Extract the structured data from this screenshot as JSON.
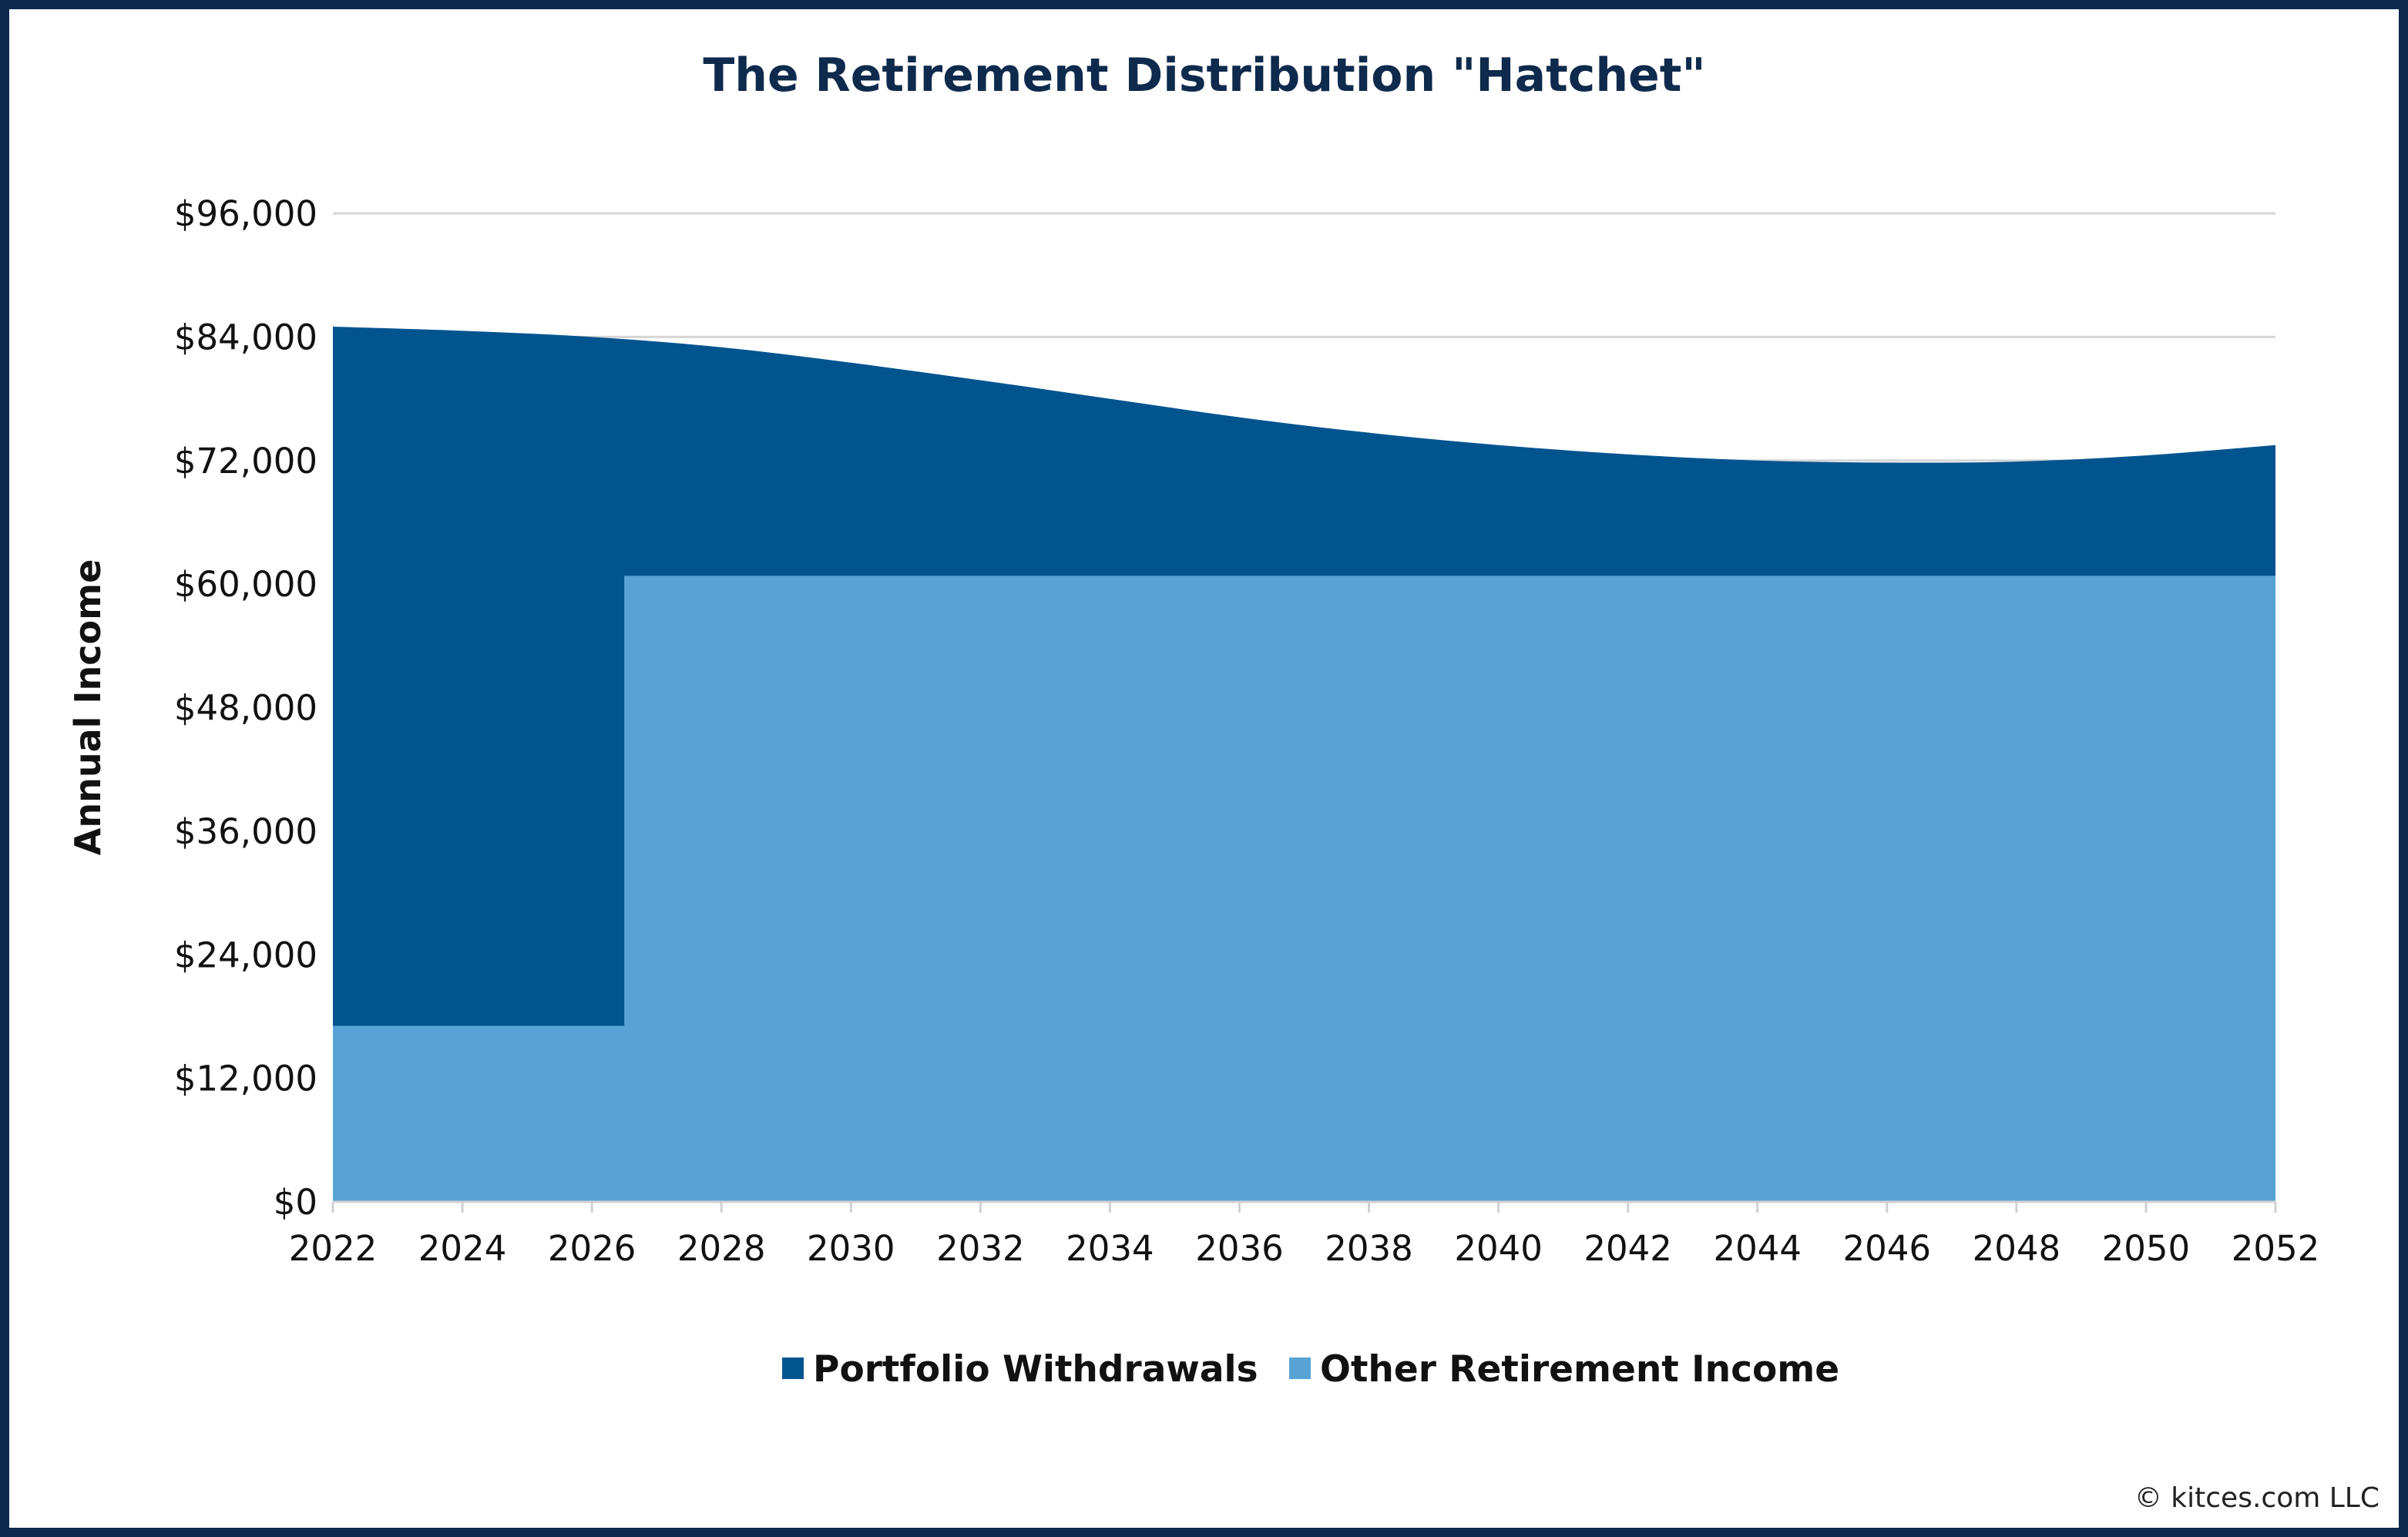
{
  "chart_data": {
    "type": "area",
    "stacked": true,
    "title": "The Retirement Distribution \"Hatchet\"",
    "xlabel": "",
    "ylabel": "Annual Income",
    "xlim": [
      2022,
      2052
    ],
    "ylim": [
      0,
      96000
    ],
    "x_ticks": [
      "2022",
      "2024",
      "2026",
      "2028",
      "2030",
      "2032",
      "2034",
      "2036",
      "2038",
      "2040",
      "2042",
      "2044",
      "2046",
      "2048",
      "2050",
      "2052"
    ],
    "y_ticks": [
      "$0",
      "$12,000",
      "$24,000",
      "$36,000",
      "$48,000",
      "$60,000",
      "$72,000",
      "$84,000",
      "$96,000"
    ],
    "y_tick_values": [
      0,
      12000,
      24000,
      36000,
      48000,
      60000,
      72000,
      84000,
      96000
    ],
    "grid": true,
    "legend_position": "bottom",
    "series": [
      {
        "name": "Portfolio Withdrawals",
        "color": "#02548f",
        "total_x": [
          2022,
          2024,
          2026,
          2028,
          2030,
          2032,
          2034,
          2036,
          2038,
          2040,
          2042,
          2044,
          2046,
          2048,
          2050,
          2052
        ],
        "total_y": [
          85000,
          84600,
          84000,
          83000,
          81500,
          79800,
          78000,
          76200,
          74700,
          73500,
          72600,
          72000,
          71800,
          71900,
          72500,
          73500
        ]
      },
      {
        "name": "Other Retirement Income",
        "color": "#58a3d6",
        "step_x": [
          2022,
          2026.5,
          2026.5,
          2052
        ],
        "step_y": [
          17100,
          17100,
          60800,
          60800
        ]
      }
    ]
  },
  "credit": "© kitces.com LLC"
}
